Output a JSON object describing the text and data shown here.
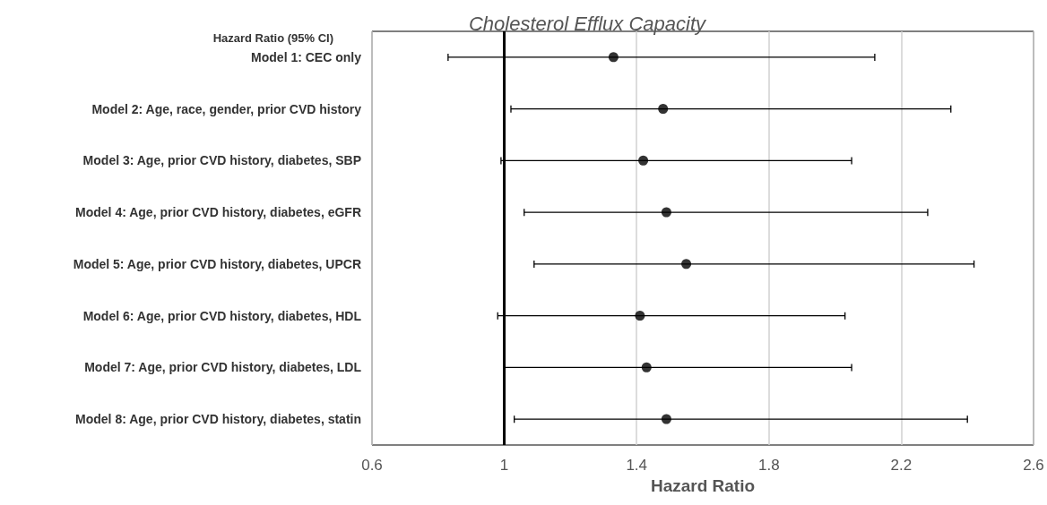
{
  "chart_data": {
    "type": "scatter",
    "title": "Cholesterol Efflux Capacity",
    "xlabel": "Hazard Ratio",
    "ylabel": "Hazard Ratio (95% CI)",
    "categories": [
      "Model 1: CEC only",
      "Model 2: Age, race, gender, prior CVD history",
      "Model 3: Age, prior CVD history, diabetes, SBP",
      "Model 4: Age, prior CVD history, diabetes, eGFR",
      "Model 5: Age, prior CVD history, diabetes, UPCR",
      "Model 6: Age, prior CVD history, diabetes, HDL",
      "Model 7: Age, prior CVD history, diabetes, LDL",
      "Model 8: Age, prior CVD history, diabetes, statin"
    ],
    "series": [
      {
        "color": "#000000",
        "values": [
          1.33,
          1.48,
          1.42,
          1.49,
          1.55,
          1.41,
          1.43,
          1.49
        ],
        "errors": [
          [
            0.83,
            2.12
          ],
          [
            1.02,
            2.35
          ],
          [
            0.99,
            2.05
          ],
          [
            1.06,
            2.28
          ],
          [
            1.09,
            2.42
          ],
          [
            0.98,
            2.03
          ],
          [
            1.0,
            2.05
          ],
          [
            1.03,
            2.4
          ]
        ]
      }
    ],
    "orientation": "horizontal",
    "xlim": [
      0.6,
      2.6
    ],
    "xticks": [
      0.6,
      1,
      1.4,
      1.8,
      2.2,
      2.6
    ],
    "grid": "x",
    "marker": "circle",
    "ref_lines": [
      {
        "axis": "x",
        "value": 1,
        "color": "#000000",
        "line_style": "solid"
      }
    ]
  }
}
